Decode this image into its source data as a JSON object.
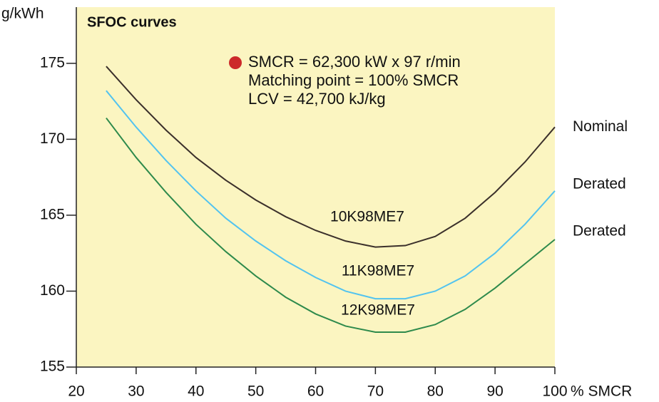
{
  "chart_data": {
    "type": "line",
    "title": "SFOC curves",
    "y_label": "g/kWh",
    "x_label": "% SMCR",
    "annotation": [
      "SMCR = 62,300 kW x 97 r/min",
      "Matching point = 100% SMCR",
      "LCV = 42,700 kJ/kg"
    ],
    "marker_color": "#cc2a2a",
    "background": "#fbf5c1",
    "x": [
      25,
      30,
      35,
      40,
      45,
      50,
      55,
      60,
      65,
      70,
      75,
      80,
      85,
      90,
      95,
      100
    ],
    "series": [
      {
        "name": "Nominal",
        "label": "10K98ME7",
        "color": "#3b302b",
        "values": [
          174.8,
          172.6,
          170.6,
          168.8,
          167.3,
          166.0,
          164.9,
          164.0,
          163.3,
          162.9,
          163.0,
          163.6,
          164.8,
          166.5,
          168.5,
          170.8
        ]
      },
      {
        "name": "Derated",
        "label": "11K98ME7",
        "color": "#52c3ef",
        "values": [
          173.2,
          170.8,
          168.6,
          166.6,
          164.8,
          163.3,
          162.0,
          160.9,
          160.0,
          159.5,
          159.5,
          160.0,
          161.0,
          162.5,
          164.4,
          166.6
        ]
      },
      {
        "name": "Derated",
        "label": "12K98ME7",
        "color": "#2e8a4c",
        "values": [
          171.4,
          168.8,
          166.5,
          164.4,
          162.6,
          161.0,
          159.6,
          158.5,
          157.7,
          157.3,
          157.3,
          157.8,
          158.8,
          160.2,
          161.8,
          163.4
        ]
      }
    ],
    "xlim": [
      20,
      100
    ],
    "xticks": [
      20,
      30,
      40,
      50,
      60,
      70,
      80,
      90,
      100
    ],
    "ylim": [
      155,
      178.7
    ],
    "yticks": [
      155,
      160,
      165,
      170,
      175
    ]
  }
}
